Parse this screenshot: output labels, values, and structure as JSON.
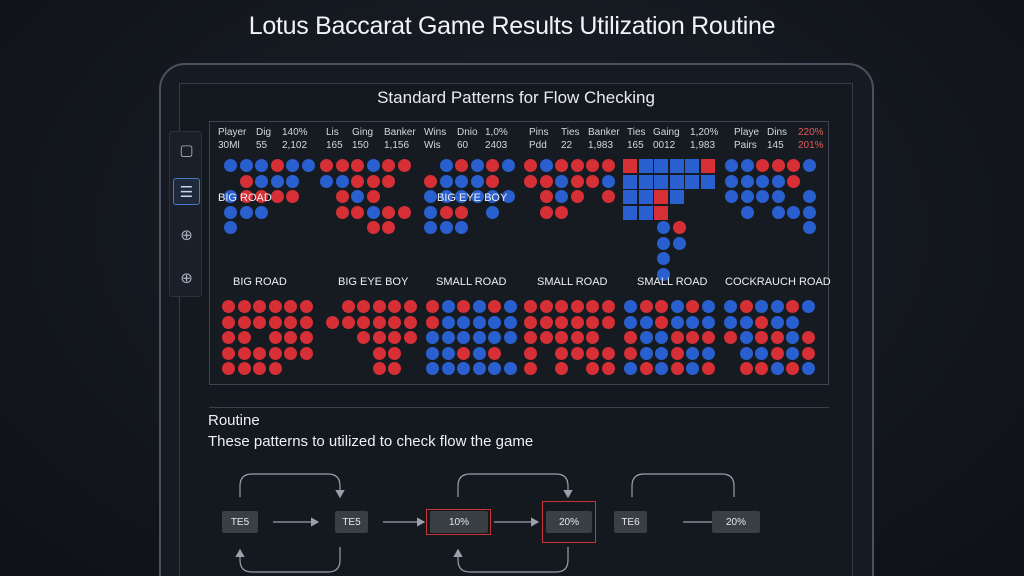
{
  "title": "Lotus Baccarat Game Results Utilization Routine",
  "panel": {
    "heading": "Standard Patterns for Flow Checking"
  },
  "sidebar": {
    "items": [
      {
        "icon": "square-icon",
        "glyph": "▢"
      },
      {
        "icon": "list-icon",
        "glyph": "☰",
        "active": true
      },
      {
        "icon": "plus-circle-icon",
        "glyph": "⊕"
      },
      {
        "icon": "plus-circle-icon",
        "glyph": "⊕"
      }
    ]
  },
  "stats": {
    "row1": [
      "Player",
      "Dig",
      "140%",
      "Lis",
      "Ging",
      "Banker",
      "Wins",
      "Dnio",
      "1,0%",
      "Pins",
      "Ties",
      "Banker",
      "Ties",
      "Gaing",
      "1,20%",
      "Playe",
      "Dins",
      "220%"
    ],
    "row2": [
      "30Ml",
      "55",
      "2,102",
      "165",
      "150",
      "1,156",
      "Wis",
      "60",
      "2403",
      "Pdd",
      "22",
      "1,983",
      "165",
      "0012",
      "1,983",
      "Pairs",
      "145",
      "201%"
    ]
  },
  "roads": {
    "top_labels": [
      "BIG ROAD",
      "BIG EYE BOY"
    ],
    "bottom_labels": [
      "BIG ROAD",
      "BIG EYE BOY",
      "SMALL ROAD",
      "SMALL ROAD",
      "SMALL ROAD",
      "COCKRAUCH ROAD"
    ]
  },
  "routine": {
    "title": "Routine",
    "description": "These patterns to utilized to check flow the game",
    "nodes": [
      "TE5",
      "TE5",
      "10%",
      "20%",
      "TE6",
      "20%"
    ]
  },
  "colors": {
    "banker": "#d62f35",
    "player": "#2a5fd0",
    "highlight": "#c9343a"
  }
}
